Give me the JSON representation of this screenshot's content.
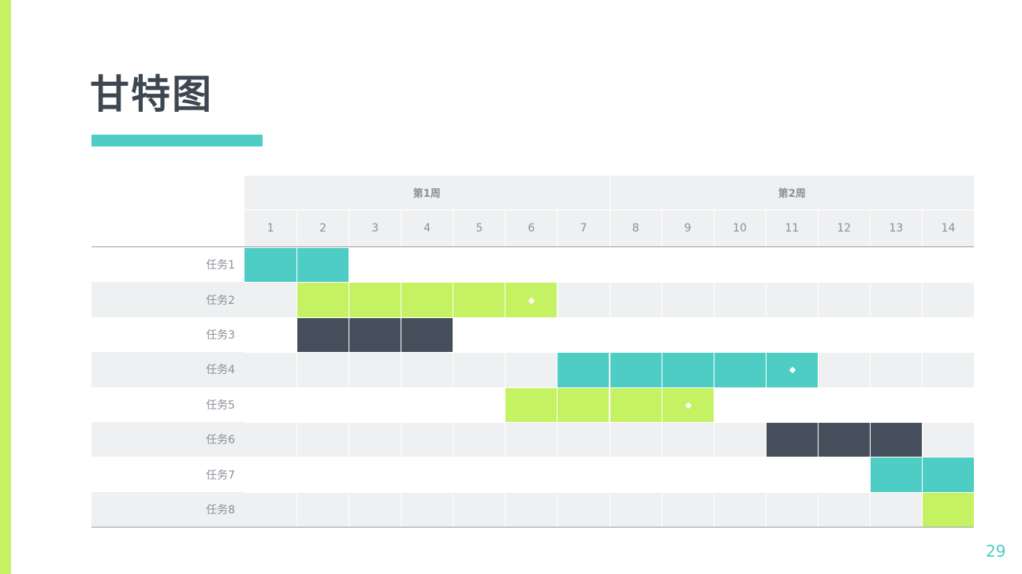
{
  "title": "甘特图",
  "page_number": "29",
  "colors": {
    "teal": "#4ecdc4",
    "lime": "#c5f263",
    "dark": "#454f5b"
  },
  "table": {
    "weeks": [
      "第1周",
      "第2周"
    ],
    "days": [
      1,
      2,
      3,
      4,
      5,
      6,
      7,
      8,
      9,
      10,
      11,
      12,
      13,
      14
    ],
    "rows": [
      {
        "label": "任务1",
        "cells": [
          "teal",
          "teal",
          null,
          null,
          null,
          null,
          null,
          null,
          null,
          null,
          null,
          null,
          null,
          null
        ],
        "milestone": false
      },
      {
        "label": "任务2",
        "cells": [
          null,
          "lime",
          "lime",
          "lime",
          "lime",
          "lime",
          null,
          null,
          null,
          null,
          null,
          null,
          null,
          null
        ],
        "milestone": true
      },
      {
        "label": "任务3",
        "cells": [
          null,
          "dark",
          "dark",
          "dark",
          null,
          null,
          null,
          null,
          null,
          null,
          null,
          null,
          null,
          null
        ],
        "milestone": false
      },
      {
        "label": "任务4",
        "cells": [
          null,
          null,
          null,
          null,
          null,
          null,
          "teal",
          "teal",
          "teal",
          "teal",
          "teal",
          null,
          null,
          null
        ],
        "milestone": true
      },
      {
        "label": "任务5",
        "cells": [
          null,
          null,
          null,
          null,
          null,
          "lime",
          "lime",
          "lime",
          "lime",
          null,
          null,
          null,
          null,
          null
        ],
        "milestone": true
      },
      {
        "label": "任务6",
        "cells": [
          null,
          null,
          null,
          null,
          null,
          null,
          null,
          null,
          null,
          null,
          "dark",
          "dark",
          "dark",
          null
        ],
        "milestone": false
      },
      {
        "label": "任务7",
        "cells": [
          null,
          null,
          null,
          null,
          null,
          null,
          null,
          null,
          null,
          null,
          null,
          null,
          "teal",
          "teal"
        ],
        "milestone": false
      },
      {
        "label": "任务8",
        "cells": [
          null,
          null,
          null,
          null,
          null,
          null,
          null,
          null,
          null,
          null,
          null,
          null,
          null,
          "lime"
        ],
        "milestone": false
      }
    ]
  }
}
